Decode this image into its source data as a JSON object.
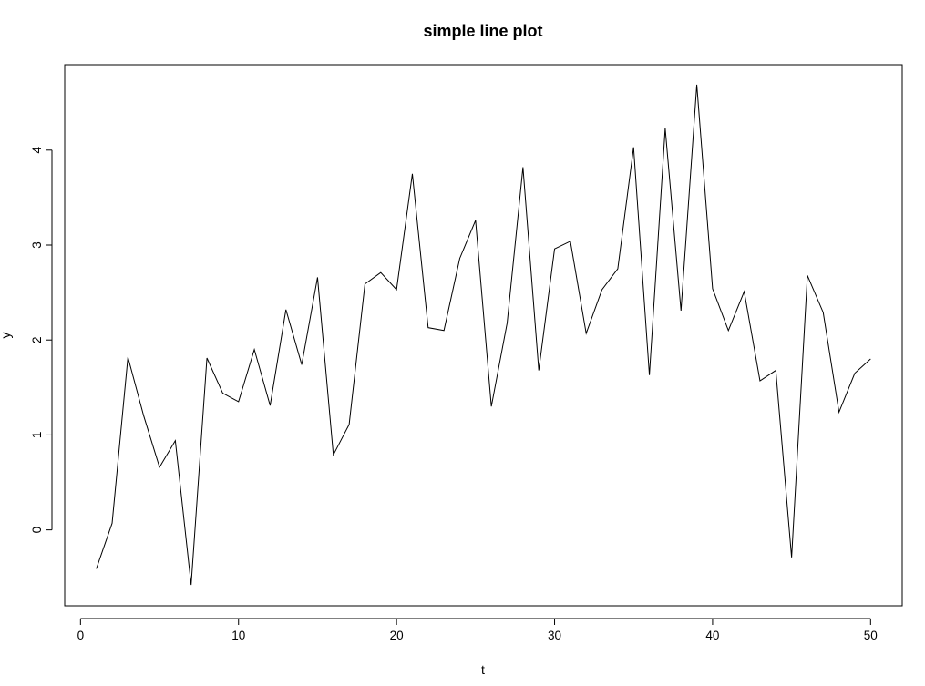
{
  "chart_data": {
    "type": "line",
    "title": "simple line plot",
    "xlabel": "t",
    "ylabel": "y",
    "xlim": [
      -1,
      52
    ],
    "ylim": [
      -0.8,
      4.9
    ],
    "xticks": [
      0,
      10,
      20,
      30,
      40,
      50
    ],
    "yticks": [
      0,
      1,
      2,
      3,
      4
    ],
    "grid": false,
    "legend": "none",
    "line_color": "#000000",
    "series": [
      {
        "x": [
          1,
          2,
          3,
          4,
          5,
          6,
          7,
          8,
          9,
          10,
          11,
          12,
          13,
          14,
          15,
          16,
          17,
          18,
          19,
          20,
          21,
          22,
          23,
          24,
          25,
          26,
          27,
          28,
          29,
          30,
          31,
          32,
          33,
          34,
          35,
          36,
          37,
          38,
          39,
          40,
          41,
          42,
          43,
          44,
          45,
          46,
          47,
          48,
          49,
          50
        ],
        "values": [
          -0.41,
          0.07,
          1.82,
          1.2,
          0.66,
          0.94,
          -0.58,
          1.81,
          1.44,
          1.35,
          1.9,
          1.31,
          2.32,
          1.74,
          2.66,
          0.79,
          1.11,
          2.59,
          2.71,
          2.53,
          3.75,
          2.13,
          2.1,
          2.86,
          3.26,
          1.3,
          2.18,
          3.82,
          1.68,
          2.96,
          3.04,
          2.07,
          2.53,
          2.75,
          4.03,
          1.63,
          4.23,
          2.31,
          4.69,
          2.54,
          2.1,
          2.51,
          1.57,
          1.68,
          -0.29,
          2.68,
          2.29,
          1.24,
          1.65,
          1.8
        ]
      }
    ]
  }
}
